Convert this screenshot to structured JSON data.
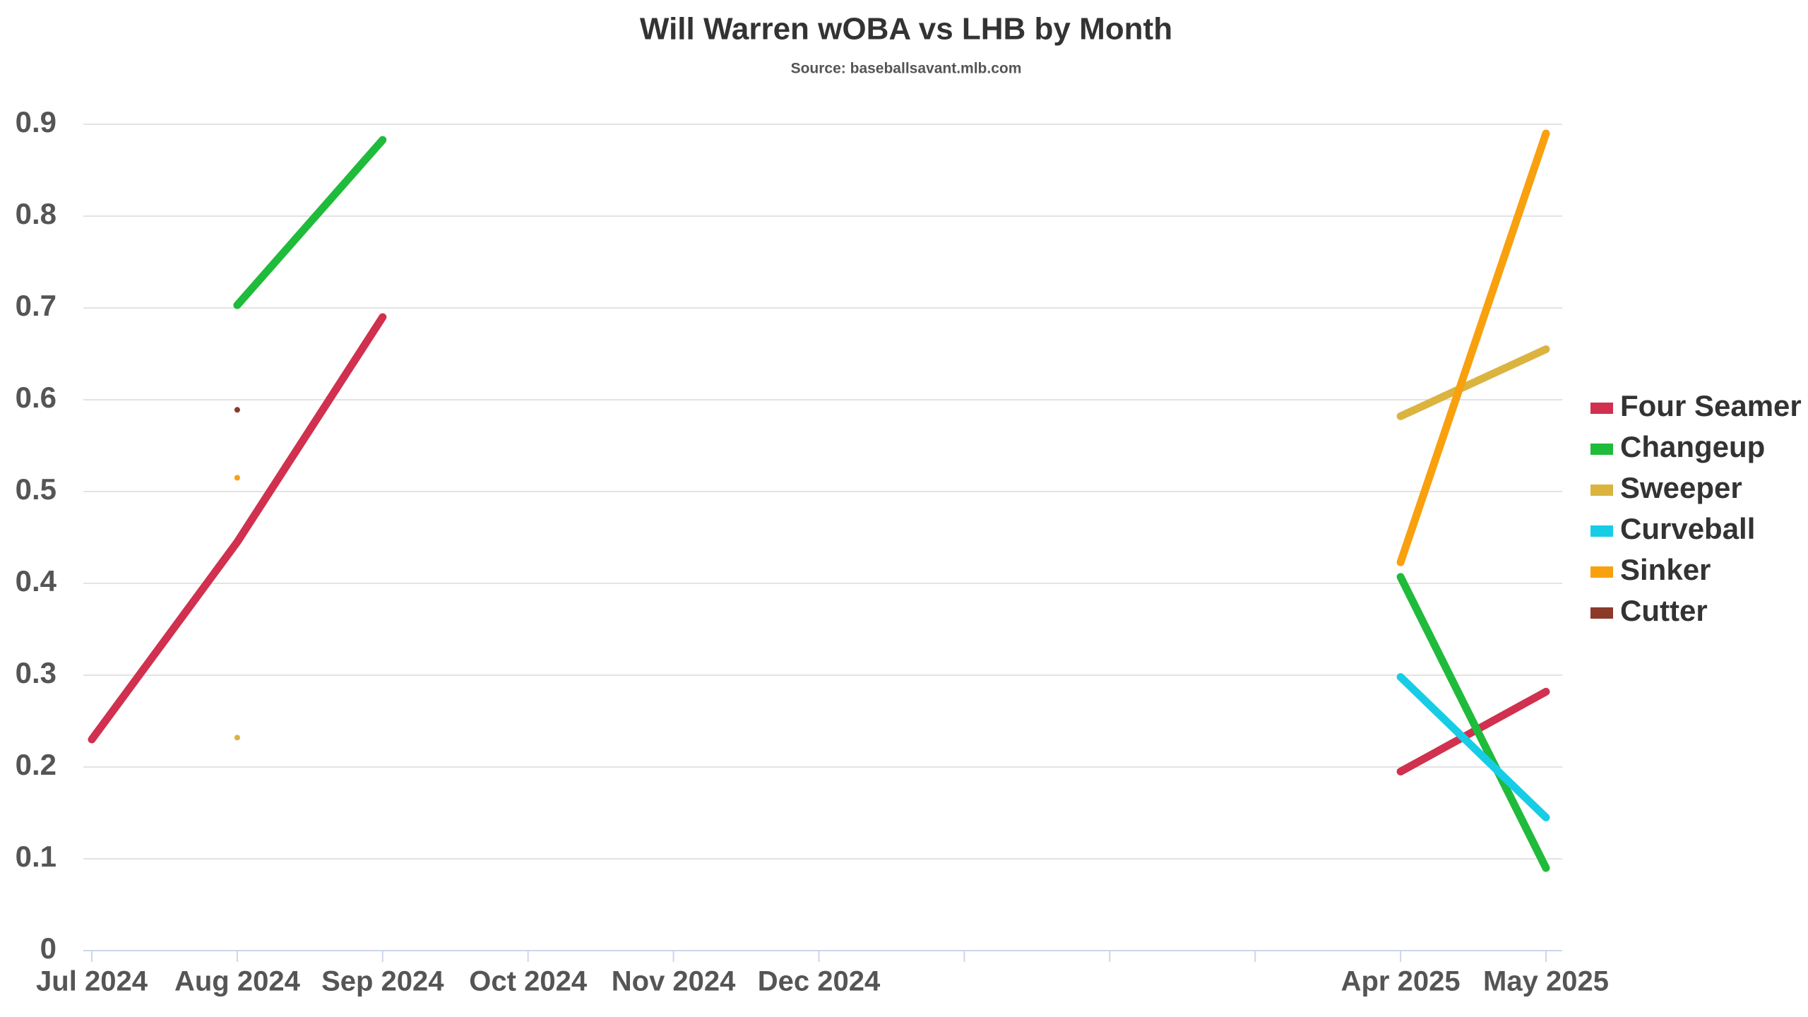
{
  "chart_data": {
    "type": "line",
    "title": "Will Warren wOBA vs LHB by Month",
    "subtitle": "Source: baseballsavant.mlb.com",
    "categories": [
      "Jul 2024",
      "Aug 2024",
      "Sep 2024",
      "Oct 2024",
      "Nov 2024",
      "Dec 2024",
      null,
      null,
      null,
      "Apr 2025",
      "May 2025"
    ],
    "series": [
      {
        "name": "Four Seamer",
        "color": "#d1304f",
        "values": [
          0.23,
          0.445,
          0.69,
          null,
          null,
          null,
          null,
          null,
          null,
          0.195,
          0.282
        ]
      },
      {
        "name": "Changeup",
        "color": "#1fbb3a",
        "values": [
          null,
          0.703,
          0.883,
          null,
          null,
          null,
          null,
          null,
          null,
          0.407,
          0.09
        ]
      },
      {
        "name": "Sweeper",
        "color": "#dbb440",
        "values": [
          null,
          0.232,
          null,
          null,
          null,
          null,
          null,
          null,
          null,
          0.582,
          0.655
        ]
      },
      {
        "name": "Curveball",
        "color": "#17cde6",
        "values": [
          null,
          null,
          null,
          null,
          null,
          null,
          null,
          null,
          null,
          0.298,
          0.145
        ]
      },
      {
        "name": "Sinker",
        "color": "#f9a00f",
        "values": [
          null,
          0.515,
          null,
          null,
          null,
          null,
          null,
          null,
          null,
          0.423,
          0.89
        ]
      },
      {
        "name": "Cutter",
        "color": "#8c3a2a",
        "values": [
          null,
          0.589,
          null,
          null,
          null,
          null,
          null,
          null,
          null,
          null,
          null
        ]
      }
    ],
    "ylim": [
      0,
      0.9
    ],
    "yticks": [
      0,
      0.1,
      0.2,
      0.3,
      0.4,
      0.5,
      0.6,
      0.7,
      0.8,
      0.9
    ],
    "grid": true,
    "legend": "right"
  }
}
